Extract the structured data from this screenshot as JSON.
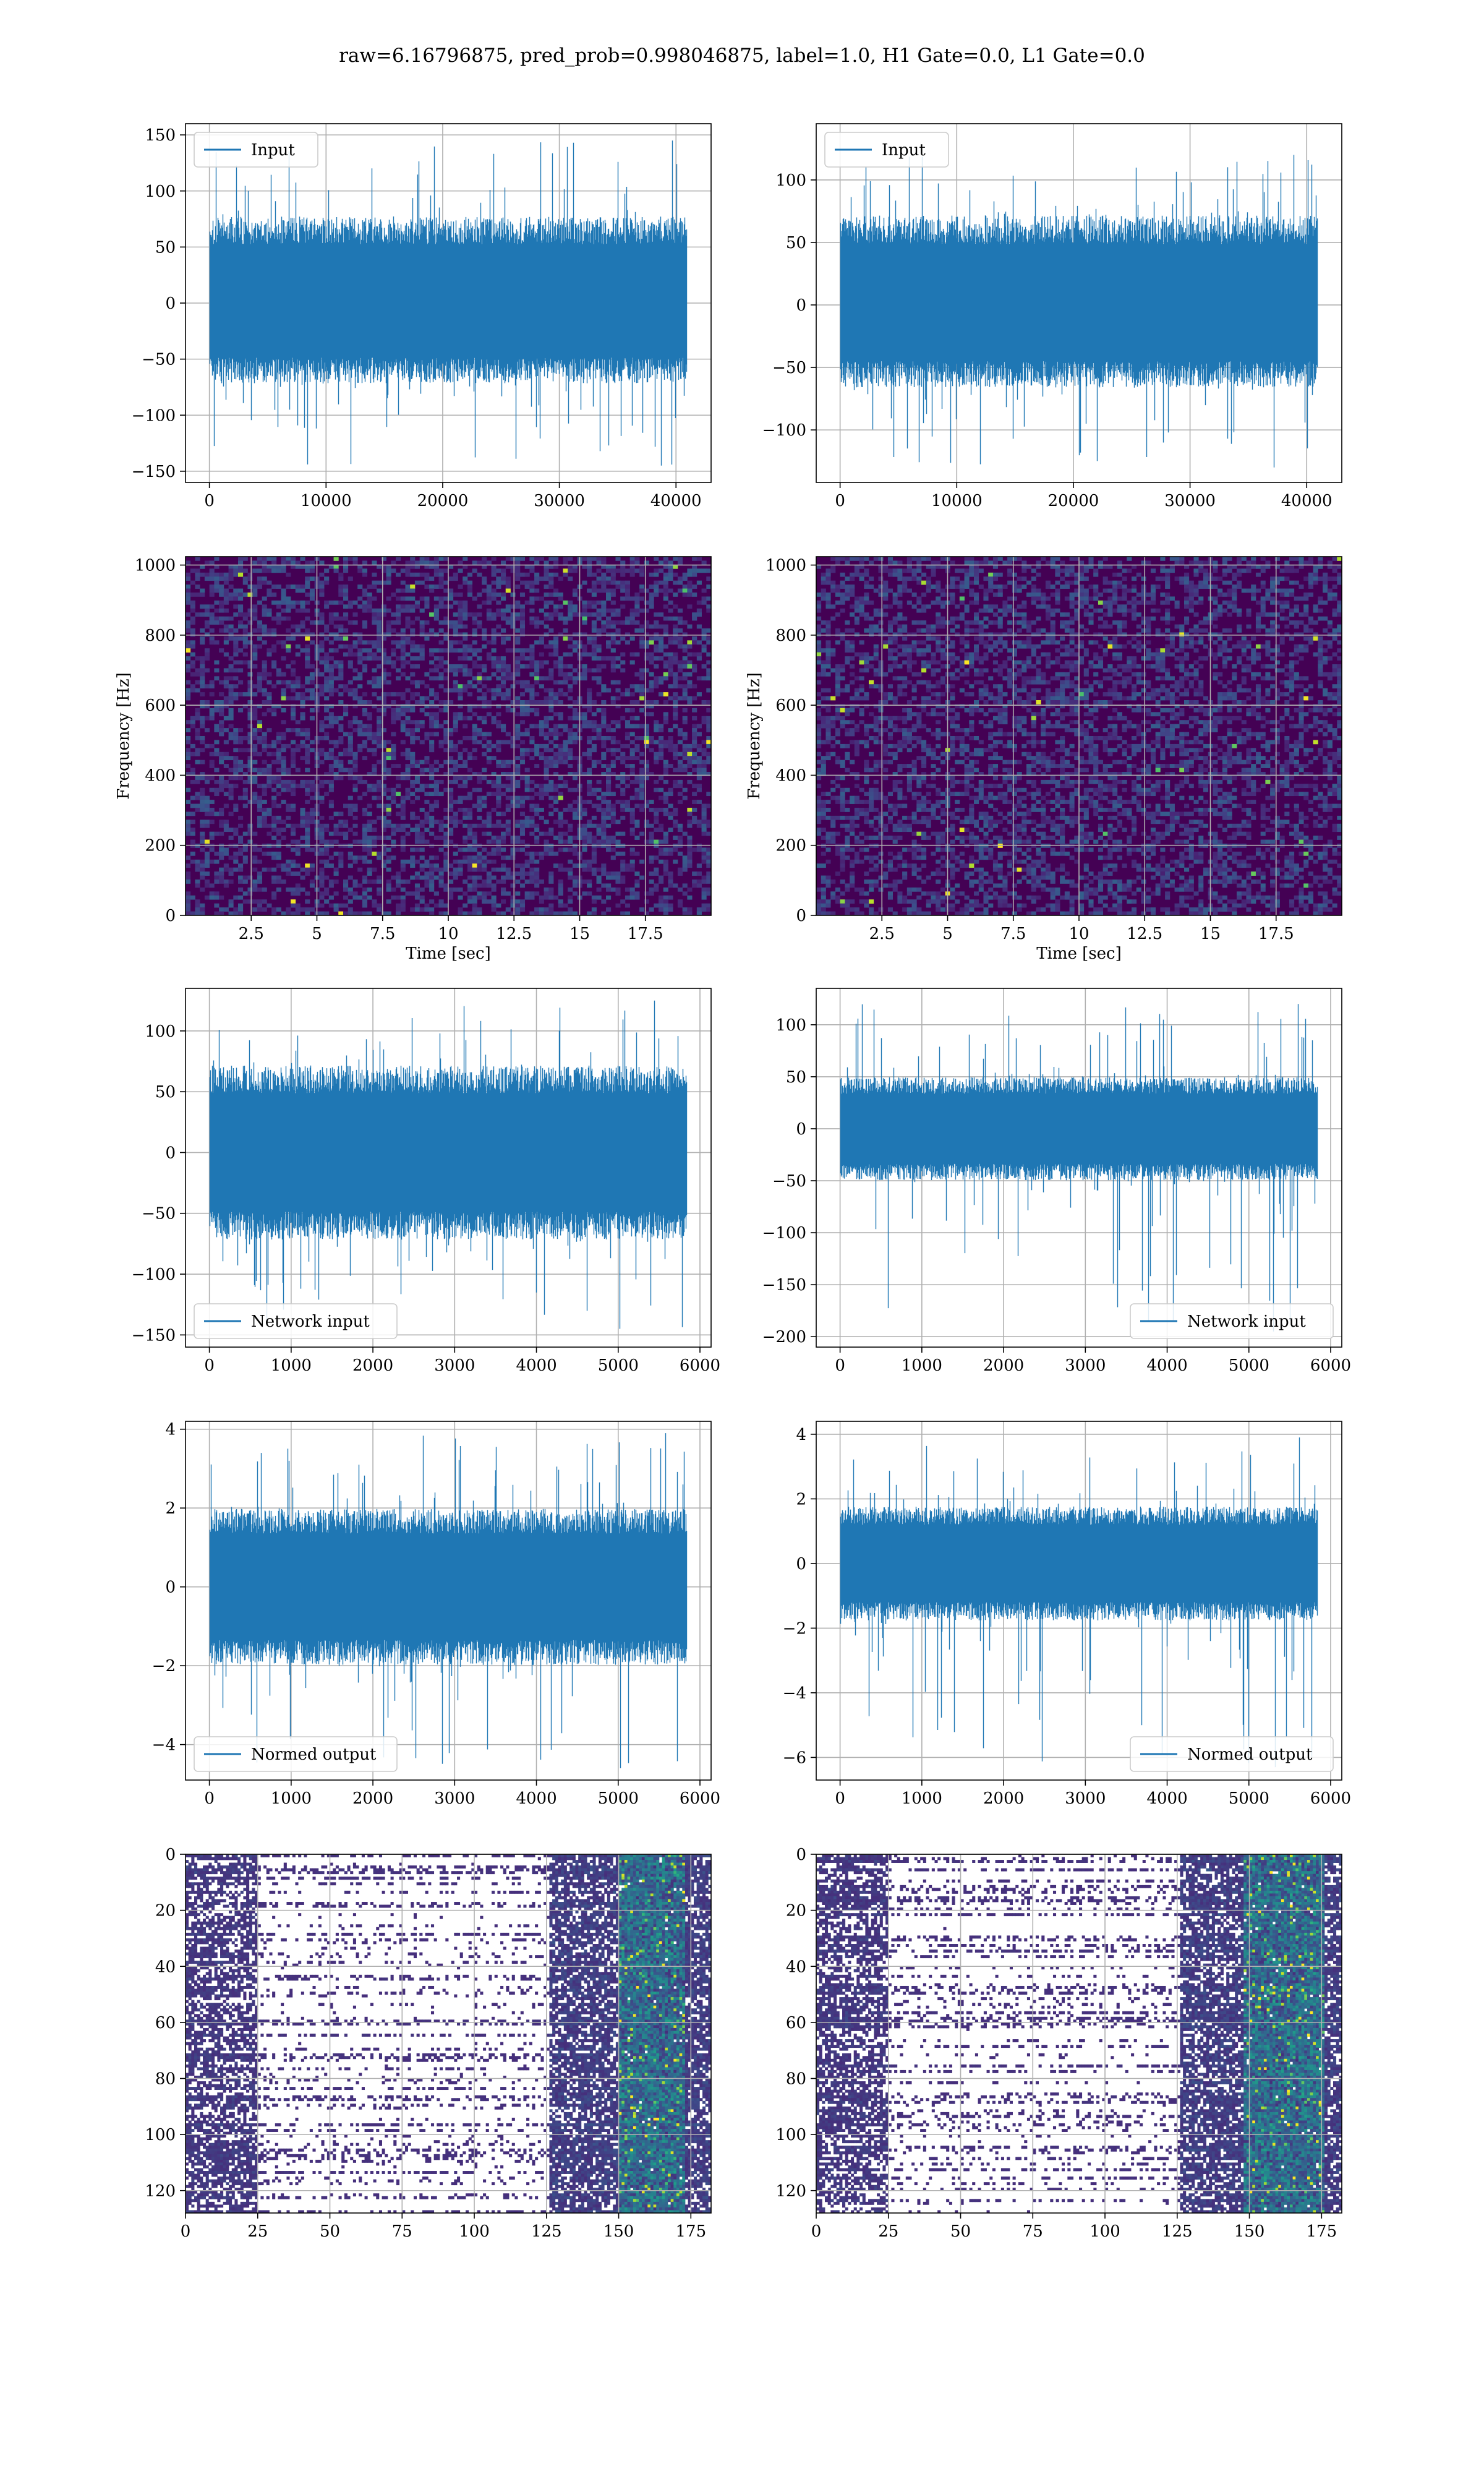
{
  "figure": {
    "suptitle": "raw=6.16796875, pred_prob=0.998046875, label=1.0, H1 Gate=0.0, L1 Gate=0.0",
    "colors": {
      "line": "#1f77b4",
      "grid": "#b0b0b0",
      "viridis_dark": "#440154"
    }
  },
  "chart_data": [
    {
      "id": "input_h1",
      "type": "line",
      "title": "",
      "xlabel": "",
      "ylabel": "",
      "legend": "Input",
      "legend_loc": "upper-left",
      "xlim": [
        -2048,
        43008
      ],
      "ylim": [
        -160,
        160
      ],
      "xticks": [
        0,
        10000,
        20000,
        30000,
        40000
      ],
      "yticks": [
        -150,
        -100,
        -50,
        0,
        50,
        100,
        150
      ],
      "grid": true,
      "series": [
        {
          "name": "Input",
          "n": 40960,
          "env_lo": -65,
          "env_hi": 70,
          "spike_min": -145,
          "spike_max": 145
        }
      ]
    },
    {
      "id": "input_l1",
      "type": "line",
      "title": "",
      "xlabel": "",
      "ylabel": "",
      "legend": "Input",
      "legend_loc": "upper-left",
      "xlim": [
        -2048,
        43008
      ],
      "ylim": [
        -142,
        145
      ],
      "xticks": [
        0,
        10000,
        20000,
        30000,
        40000
      ],
      "yticks": [
        -100,
        -50,
        0,
        50,
        100
      ],
      "grid": true,
      "series": [
        {
          "name": "Input",
          "n": 40960,
          "env_lo": -60,
          "env_hi": 65,
          "spike_min": -130,
          "spike_max": 120
        }
      ]
    },
    {
      "id": "spec_h1",
      "type": "heatmap",
      "title": "",
      "xlabel": "Time [sec]",
      "ylabel": "Frequency [Hz]",
      "xlim": [
        0,
        20
      ],
      "ylim": [
        0,
        1024
      ],
      "xticks": [
        2.5,
        5.0,
        7.5,
        10.0,
        12.5,
        15.0,
        17.5
      ],
      "yticks": [
        0,
        200,
        400,
        600,
        800,
        1000
      ],
      "grid": true,
      "colormap": "viridis"
    },
    {
      "id": "spec_l1",
      "type": "heatmap",
      "title": "",
      "xlabel": "Time [sec]",
      "ylabel": "Frequency [Hz]",
      "xlim": [
        0,
        20
      ],
      "ylim": [
        0,
        1024
      ],
      "xticks": [
        2.5,
        5.0,
        7.5,
        10.0,
        12.5,
        15.0,
        17.5
      ],
      "yticks": [
        0,
        200,
        400,
        600,
        800,
        1000
      ],
      "grid": true,
      "colormap": "viridis"
    },
    {
      "id": "net_h1",
      "type": "line",
      "title": "",
      "xlabel": "",
      "ylabel": "",
      "legend": "Network input",
      "legend_loc": "lower-left",
      "xlim": [
        -292,
        6136
      ],
      "ylim": [
        -160,
        135
      ],
      "xticks": [
        0,
        1000,
        2000,
        3000,
        4000,
        5000,
        6000
      ],
      "yticks": [
        -150,
        -100,
        -50,
        0,
        50,
        100
      ],
      "grid": true,
      "series": [
        {
          "name": "Network input",
          "n": 5844,
          "env_lo": -65,
          "env_hi": 65,
          "spike_min": -145,
          "spike_max": 125
        }
      ]
    },
    {
      "id": "net_l1",
      "type": "line",
      "title": "",
      "xlabel": "",
      "ylabel": "",
      "legend": "Network input",
      "legend_loc": "lower-right",
      "xlim": [
        -292,
        6136
      ],
      "ylim": [
        -210,
        135
      ],
      "xticks": [
        0,
        1000,
        2000,
        3000,
        4000,
        5000,
        6000
      ],
      "yticks": [
        -200,
        -150,
        -100,
        -50,
        0,
        50,
        100
      ],
      "grid": true,
      "series": [
        {
          "name": "Network input",
          "n": 5844,
          "env_lo": -45,
          "env_hi": 45,
          "spike_min": -195,
          "spike_max": 120
        }
      ]
    },
    {
      "id": "out_h1",
      "type": "line",
      "title": "",
      "xlabel": "",
      "ylabel": "",
      "legend": "Normed output",
      "legend_loc": "lower-left",
      "xlim": [
        -292,
        6136
      ],
      "ylim": [
        -4.9,
        4.2
      ],
      "xticks": [
        0,
        1000,
        2000,
        3000,
        4000,
        5000,
        6000
      ],
      "yticks": [
        -4,
        -2,
        0,
        2,
        4
      ],
      "grid": true,
      "series": [
        {
          "name": "Normed output",
          "n": 5844,
          "env_lo": -1.8,
          "env_hi": 1.8,
          "spike_min": -4.6,
          "spike_max": 3.9
        }
      ]
    },
    {
      "id": "out_l1",
      "type": "line",
      "title": "",
      "xlabel": "",
      "ylabel": "",
      "legend": "Normed output",
      "legend_loc": "lower-right",
      "xlim": [
        -292,
        6136
      ],
      "ylim": [
        -6.7,
        4.4
      ],
      "xticks": [
        0,
        1000,
        2000,
        3000,
        4000,
        5000,
        6000
      ],
      "yticks": [
        -6,
        -4,
        -2,
        0,
        2,
        4
      ],
      "grid": true,
      "series": [
        {
          "name": "Normed output",
          "n": 5844,
          "env_lo": -1.6,
          "env_hi": 1.6,
          "spike_min": -6.3,
          "spike_max": 3.9
        }
      ]
    },
    {
      "id": "feat_h1",
      "type": "heatmap",
      "title": "",
      "xlabel": "",
      "ylabel": "",
      "xlim": [
        0,
        182
      ],
      "ylim": [
        128,
        0
      ],
      "rows": 128,
      "cols": 182,
      "xticks": [
        0,
        25,
        50,
        75,
        100,
        125,
        150,
        175
      ],
      "yticks": [
        0,
        20,
        40,
        60,
        80,
        100,
        120
      ],
      "grid": true,
      "colormap": "viridis",
      "bright_cols": [
        150,
        172
      ]
    },
    {
      "id": "feat_l1",
      "type": "heatmap",
      "title": "",
      "xlabel": "",
      "ylabel": "",
      "xlim": [
        0,
        182
      ],
      "ylim": [
        128,
        0
      ],
      "rows": 128,
      "cols": 182,
      "xticks": [
        0,
        25,
        50,
        75,
        100,
        125,
        150,
        175
      ],
      "yticks": [
        0,
        20,
        40,
        60,
        80,
        100,
        120
      ],
      "grid": true,
      "colormap": "viridis",
      "bright_cols": [
        148,
        175
      ]
    }
  ]
}
